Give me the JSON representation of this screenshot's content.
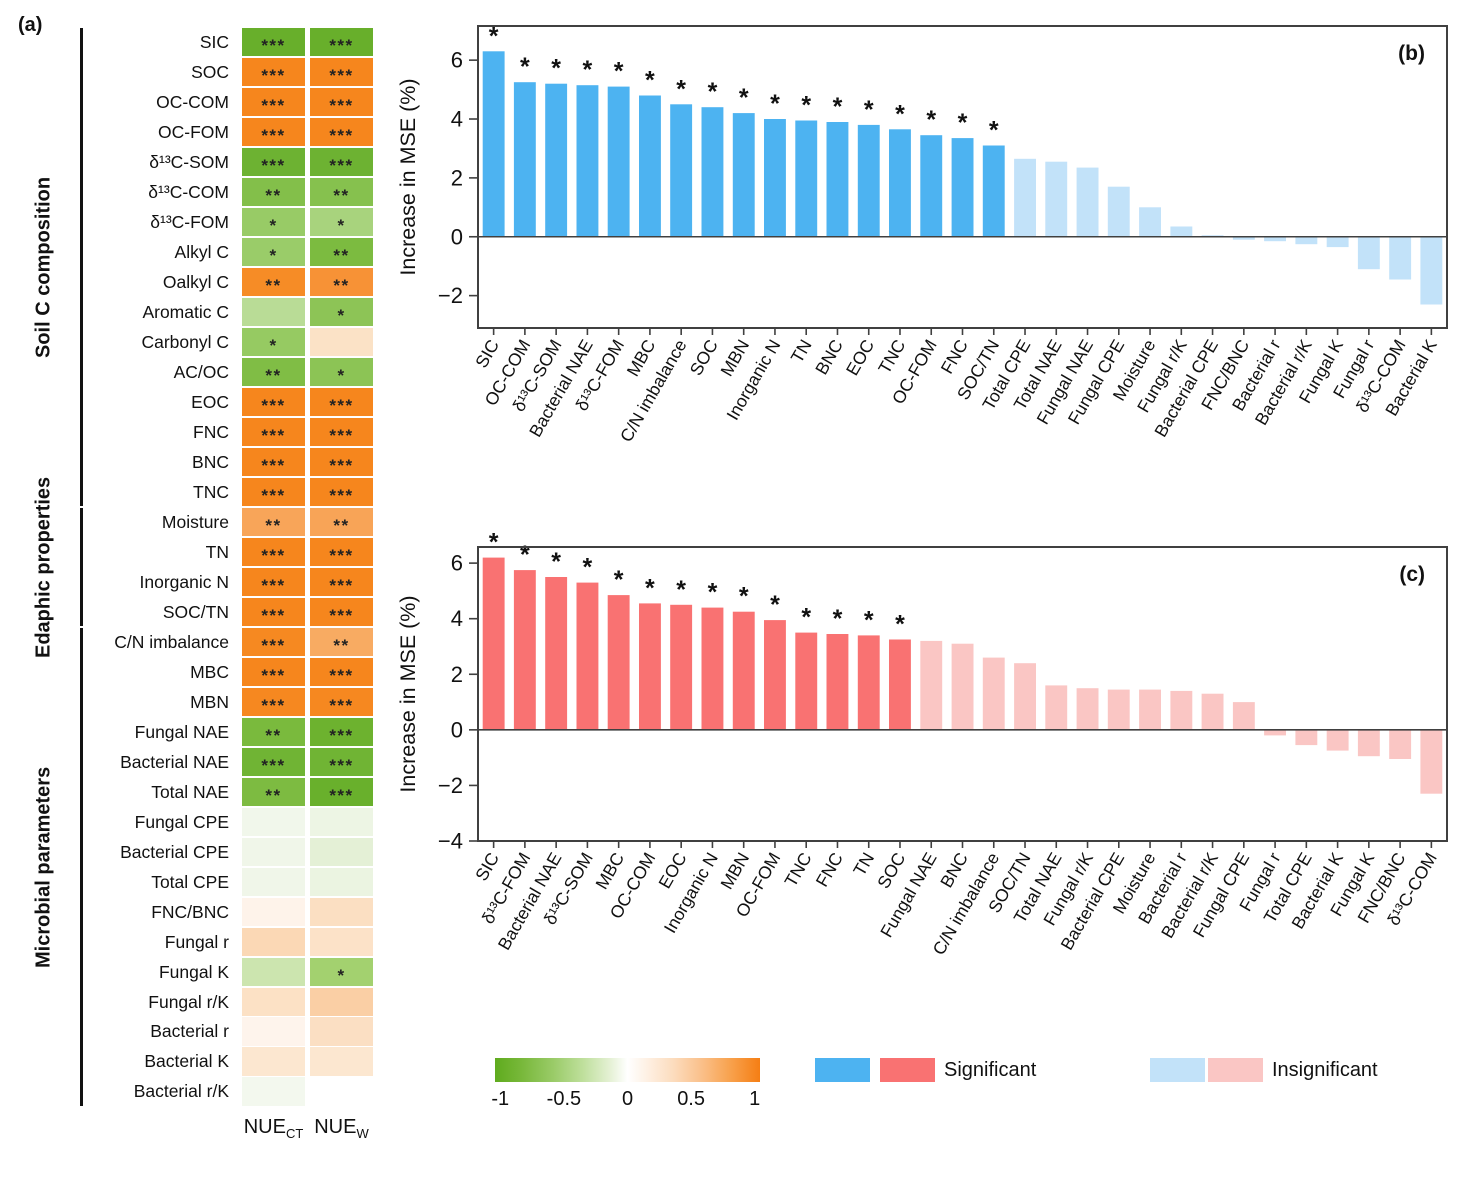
{
  "chart_data": [
    {
      "type": "heatmap",
      "tag": "(a)",
      "col_headers": [
        {
          "base": "NUE",
          "sub": "CT"
        },
        {
          "base": "NUE",
          "sub": "W"
        }
      ],
      "groups": [
        {
          "label": "Soil C composition",
          "row_start": 0,
          "row_end": 15
        },
        {
          "label": "Edaphic properties",
          "row_start": 16,
          "row_end": 19
        },
        {
          "label": "Microbial parameters",
          "row_start": 20,
          "row_end": 35
        }
      ],
      "rows": [
        {
          "label": "SIC",
          "cells": [
            {
              "color": "#68AF2B",
              "stars": "***"
            },
            {
              "color": "#68AF2B",
              "stars": "***"
            }
          ]
        },
        {
          "label": "SOC",
          "cells": [
            {
              "color": "#F6861D",
              "stars": "***"
            },
            {
              "color": "#F6861D",
              "stars": "***"
            }
          ]
        },
        {
          "label": "OC-COM",
          "cells": [
            {
              "color": "#F6861D",
              "stars": "***"
            },
            {
              "color": "#F6861D",
              "stars": "***"
            }
          ]
        },
        {
          "label": "OC-FOM",
          "cells": [
            {
              "color": "#F6861D",
              "stars": "***"
            },
            {
              "color": "#F6861D",
              "stars": "***"
            }
          ]
        },
        {
          "label": "δ¹³C-SOM",
          "cells": [
            {
              "color": "#6DB232",
              "stars": "***"
            },
            {
              "color": "#6DB232",
              "stars": "***"
            }
          ]
        },
        {
          "label": "δ¹³C-COM",
          "cells": [
            {
              "color": "#83BF4A",
              "stars": "**"
            },
            {
              "color": "#86C14E",
              "stars": "**"
            }
          ]
        },
        {
          "label": "δ¹³C-FOM",
          "cells": [
            {
              "color": "#98CB66",
              "stars": "*"
            },
            {
              "color": "#A8D37D",
              "stars": "*"
            }
          ]
        },
        {
          "label": "Alkyl C",
          "cells": [
            {
              "color": "#9ACC69",
              "stars": "*"
            },
            {
              "color": "#7CBB40",
              "stars": "**"
            }
          ]
        },
        {
          "label": "Oalkyl C",
          "cells": [
            {
              "color": "#F68C26",
              "stars": "**"
            },
            {
              "color": "#F79236",
              "stars": "**"
            }
          ]
        },
        {
          "label": "Aromatic C",
          "cells": [
            {
              "color": "#B9DC96",
              "stars": ""
            },
            {
              "color": "#8DC456",
              "stars": "*"
            }
          ]
        },
        {
          "label": "Carbonyl C",
          "cells": [
            {
              "color": "#96CA62",
              "stars": "*"
            },
            {
              "color": "#FBE2C6",
              "stars": ""
            }
          ]
        },
        {
          "label": "AC/OC",
          "cells": [
            {
              "color": "#80BD45",
              "stars": "**"
            },
            {
              "color": "#8CC455",
              "stars": "*"
            }
          ]
        },
        {
          "label": "EOC",
          "cells": [
            {
              "color": "#F6861D",
              "stars": "***"
            },
            {
              "color": "#F6861D",
              "stars": "***"
            }
          ]
        },
        {
          "label": "FNC",
          "cells": [
            {
              "color": "#F6861D",
              "stars": "***"
            },
            {
              "color": "#F6861D",
              "stars": "***"
            }
          ]
        },
        {
          "label": "BNC",
          "cells": [
            {
              "color": "#F6861D",
              "stars": "***"
            },
            {
              "color": "#F6861D",
              "stars": "***"
            }
          ]
        },
        {
          "label": "TNC",
          "cells": [
            {
              "color": "#F6861D",
              "stars": "***"
            },
            {
              "color": "#F6861D",
              "stars": "***"
            }
          ]
        },
        {
          "label": "Moisture",
          "cells": [
            {
              "color": "#F8A559",
              "stars": "**"
            },
            {
              "color": "#F8A457",
              "stars": "**"
            }
          ]
        },
        {
          "label": "TN",
          "cells": [
            {
              "color": "#F6861D",
              "stars": "***"
            },
            {
              "color": "#F6861D",
              "stars": "***"
            }
          ]
        },
        {
          "label": "Inorganic N",
          "cells": [
            {
              "color": "#F6861D",
              "stars": "***"
            },
            {
              "color": "#F6861D",
              "stars": "***"
            }
          ]
        },
        {
          "label": "SOC/TN",
          "cells": [
            {
              "color": "#F6861D",
              "stars": "***"
            },
            {
              "color": "#F6861D",
              "stars": "***"
            }
          ]
        },
        {
          "label": "C/N imbalance",
          "cells": [
            {
              "color": "#F68921",
              "stars": "***"
            },
            {
              "color": "#F8AB62",
              "stars": "**"
            }
          ]
        },
        {
          "label": "MBC",
          "cells": [
            {
              "color": "#F6861D",
              "stars": "***"
            },
            {
              "color": "#F6861D",
              "stars": "***"
            }
          ]
        },
        {
          "label": "MBN",
          "cells": [
            {
              "color": "#F68820",
              "stars": "***"
            },
            {
              "color": "#F68820",
              "stars": "***"
            }
          ]
        },
        {
          "label": "Fungal NAE",
          "cells": [
            {
              "color": "#7ABA3D",
              "stars": "**"
            },
            {
              "color": "#6DB22F",
              "stars": "***"
            }
          ]
        },
        {
          "label": "Bacterial NAE",
          "cells": [
            {
              "color": "#70B434",
              "stars": "***"
            },
            {
              "color": "#70B434",
              "stars": "***"
            }
          ]
        },
        {
          "label": "Total NAE",
          "cells": [
            {
              "color": "#7DBB41",
              "stars": "**"
            },
            {
              "color": "#69B02C",
              "stars": "***"
            }
          ]
        },
        {
          "label": "Fungal CPE",
          "cells": [
            {
              "color": "#F1F7EB",
              "stars": ""
            },
            {
              "color": "#EDF5E4",
              "stars": ""
            }
          ]
        },
        {
          "label": "Bacterial CPE",
          "cells": [
            {
              "color": "#F0F6E9",
              "stars": ""
            },
            {
              "color": "#E4F0D6",
              "stars": ""
            }
          ]
        },
        {
          "label": "Total CPE",
          "cells": [
            {
              "color": "#F0F6E9",
              "stars": ""
            },
            {
              "color": "#EBF4E1",
              "stars": ""
            }
          ]
        },
        {
          "label": "FNC/BNC",
          "cells": [
            {
              "color": "#FEF3EA",
              "stars": ""
            },
            {
              "color": "#FBDFC2",
              "stars": ""
            }
          ]
        },
        {
          "label": "Fungal r",
          "cells": [
            {
              "color": "#FBD8B5",
              "stars": ""
            },
            {
              "color": "#FCE2C8",
              "stars": ""
            }
          ]
        },
        {
          "label": "Fungal K",
          "cells": [
            {
              "color": "#CCE5AF",
              "stars": ""
            },
            {
              "color": "#A3D16F",
              "stars": "*"
            }
          ]
        },
        {
          "label": "Fungal r/K",
          "cells": [
            {
              "color": "#FCE1C5",
              "stars": ""
            },
            {
              "color": "#FACFA5",
              "stars": ""
            }
          ]
        },
        {
          "label": "Bacterial r",
          "cells": [
            {
              "color": "#FEF4EC",
              "stars": ""
            },
            {
              "color": "#FBDFC3",
              "stars": ""
            }
          ]
        },
        {
          "label": "Bacterial K",
          "cells": [
            {
              "color": "#FCE7D0",
              "stars": ""
            },
            {
              "color": "#FCE7D0",
              "stars": ""
            }
          ]
        },
        {
          "label": "Bacterial r/K",
          "cells": [
            {
              "color": "#F3F8EE",
              "stars": ""
            },
            {
              "color": "#FFFFFF",
              "stars": ""
            }
          ]
        }
      ]
    },
    {
      "type": "bar",
      "tag": "(b)",
      "ylabel": "Increase in MSE (%)",
      "yticks": [
        6,
        4,
        2,
        0,
        -2
      ],
      "ylim": [
        -3.1,
        7.16
      ],
      "grid": false,
      "bar_colors": {
        "significant": "#4DB3F1",
        "insignificant": "#C2E2F9"
      },
      "bars": [
        {
          "label": "SIC",
          "value": 6.3,
          "significant": true
        },
        {
          "label": "OC-COM",
          "value": 5.25,
          "significant": true
        },
        {
          "label": "δ¹³C-SOM",
          "value": 5.2,
          "significant": true
        },
        {
          "label": "Bacterial NAE",
          "value": 5.15,
          "significant": true
        },
        {
          "label": "δ¹³C-FOM",
          "value": 5.1,
          "significant": true
        },
        {
          "label": "MBC",
          "value": 4.8,
          "significant": true
        },
        {
          "label": "C/N imbalance",
          "value": 4.5,
          "significant": true
        },
        {
          "label": "SOC",
          "value": 4.4,
          "significant": true
        },
        {
          "label": "MBN",
          "value": 4.2,
          "significant": true
        },
        {
          "label": "Inorganic N",
          "value": 4.0,
          "significant": true
        },
        {
          "label": "TN",
          "value": 3.95,
          "significant": true
        },
        {
          "label": "BNC",
          "value": 3.9,
          "significant": true
        },
        {
          "label": "EOC",
          "value": 3.8,
          "significant": true
        },
        {
          "label": "TNC",
          "value": 3.65,
          "significant": true
        },
        {
          "label": "OC-FOM",
          "value": 3.45,
          "significant": true
        },
        {
          "label": "FNC",
          "value": 3.35,
          "significant": true
        },
        {
          "label": "SOC/TN",
          "value": 3.1,
          "significant": true
        },
        {
          "label": "Total CPE",
          "value": 2.65,
          "significant": false
        },
        {
          "label": "Total NAE",
          "value": 2.55,
          "significant": false
        },
        {
          "label": "Fungal NAE",
          "value": 2.35,
          "significant": false
        },
        {
          "label": "Fungal CPE",
          "value": 1.7,
          "significant": false
        },
        {
          "label": "Moisture",
          "value": 1.0,
          "significant": false
        },
        {
          "label": "Fungal r/K",
          "value": 0.35,
          "significant": false
        },
        {
          "label": "Bacterial CPE",
          "value": 0.05,
          "significant": false
        },
        {
          "label": "FNC/BNC",
          "value": -0.1,
          "significant": false
        },
        {
          "label": "Bacterial r",
          "value": -0.15,
          "significant": false
        },
        {
          "label": "Bacterial r/K",
          "value": -0.25,
          "significant": false
        },
        {
          "label": "Fungal K",
          "value": -0.35,
          "significant": false
        },
        {
          "label": "Fungal r",
          "value": -1.1,
          "significant": false
        },
        {
          "label": "δ¹³C-COM",
          "value": -1.45,
          "significant": false
        },
        {
          "label": "Bacterial K",
          "value": -2.3,
          "significant": false
        }
      ]
    },
    {
      "type": "bar",
      "tag": "(c)",
      "ylabel": "Increase in MSE (%)",
      "yticks": [
        6,
        4,
        2,
        0,
        -2,
        -4
      ],
      "ylim": [
        -4.0,
        6.58
      ],
      "grid": false,
      "bar_colors": {
        "significant": "#F97272",
        "insignificant": "#FAC6C4"
      },
      "bars": [
        {
          "label": "SIC",
          "value": 6.2,
          "significant": true
        },
        {
          "label": "δ¹³C-FOM",
          "value": 5.75,
          "significant": true
        },
        {
          "label": "Bacterial NAE",
          "value": 5.5,
          "significant": true
        },
        {
          "label": "δ¹³C-SOM",
          "value": 5.3,
          "significant": true
        },
        {
          "label": "MBC",
          "value": 4.85,
          "significant": true
        },
        {
          "label": "OC-COM",
          "value": 4.55,
          "significant": true
        },
        {
          "label": "EOC",
          "value": 4.5,
          "significant": true
        },
        {
          "label": "Inorganic N",
          "value": 4.4,
          "significant": true
        },
        {
          "label": "MBN",
          "value": 4.25,
          "significant": true
        },
        {
          "label": "OC-FOM",
          "value": 3.95,
          "significant": true
        },
        {
          "label": "TNC",
          "value": 3.5,
          "significant": true
        },
        {
          "label": "FNC",
          "value": 3.45,
          "significant": true
        },
        {
          "label": "TN",
          "value": 3.4,
          "significant": true
        },
        {
          "label": "SOC",
          "value": 3.25,
          "significant": true
        },
        {
          "label": "Fungal NAE",
          "value": 3.2,
          "significant": false
        },
        {
          "label": "BNC",
          "value": 3.1,
          "significant": false
        },
        {
          "label": "C/N imbalance",
          "value": 2.6,
          "significant": false
        },
        {
          "label": "SOC/TN",
          "value": 2.4,
          "significant": false
        },
        {
          "label": "Total NAE",
          "value": 1.6,
          "significant": false
        },
        {
          "label": "Fungal r/K",
          "value": 1.5,
          "significant": false
        },
        {
          "label": "Bacterial CPE",
          "value": 1.45,
          "significant": false
        },
        {
          "label": "Moisture",
          "value": 1.45,
          "significant": false
        },
        {
          "label": "Bacterial r",
          "value": 1.4,
          "significant": false
        },
        {
          "label": "Bacterial r/K",
          "value": 1.3,
          "significant": false
        },
        {
          "label": "Fungal CPE",
          "value": 1.0,
          "significant": false
        },
        {
          "label": "Fungal r",
          "value": -0.2,
          "significant": false
        },
        {
          "label": "Total CPE",
          "value": -0.55,
          "significant": false
        },
        {
          "label": "Bacterial K",
          "value": -0.75,
          "significant": false
        },
        {
          "label": "Fungal K",
          "value": -0.95,
          "significant": false
        },
        {
          "label": "FNC/BNC",
          "value": -1.05,
          "significant": false
        },
        {
          "label": "δ¹³C-COM",
          "value": -2.3,
          "significant": false
        }
      ]
    }
  ],
  "legend": {
    "significant_label": "Significant",
    "insignificant_label": "Insignificant",
    "significant_colors": [
      "#4DB3F1",
      "#F97272"
    ],
    "insignificant_colors": [
      "#C2E2F9",
      "#FAC6C4"
    ],
    "colorbar": {
      "min": -1,
      "max": 1,
      "ticks": [
        "-1",
        "-0.5",
        "0",
        "0.5",
        "1"
      ],
      "min_color": "#5FAB1E",
      "mid_color": "#FFFFFF",
      "max_color": "#F57E14"
    }
  }
}
